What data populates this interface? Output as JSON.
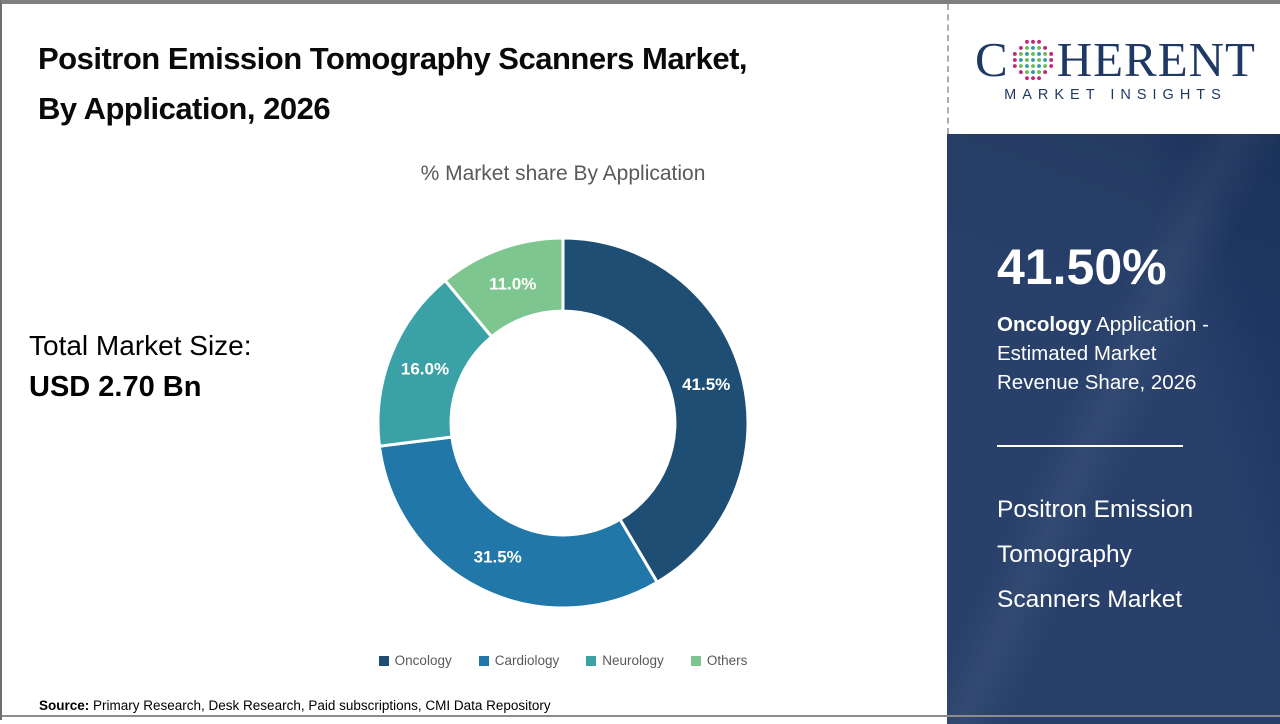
{
  "header": {
    "title_line1": "Positron Emission Tomography Scanners Market,",
    "title_line2": "By Application, 2026"
  },
  "chart_data": {
    "type": "pie",
    "subtype": "donut",
    "title": "% Market share By Application",
    "categories": [
      "Oncology",
      "Cardiology",
      "Neurology",
      "Others"
    ],
    "values": [
      41.5,
      31.5,
      16.0,
      11.0
    ],
    "labels": [
      "41.5%",
      "31.5%",
      "16.0%",
      "11.0%"
    ],
    "colors": [
      "#1F4E74",
      "#2077A8",
      "#3AA2A6",
      "#7EC68F"
    ],
    "start_angle_deg": 0,
    "direction": "clockwise",
    "inner_radius_ratio": 0.605,
    "legend_position": "bottom"
  },
  "left_panel": {
    "total_label": "Total Market Size:",
    "total_value": "USD 2.70 Bn"
  },
  "source": {
    "prefix": "Source:",
    "text": " Primary Research, Desk Research, Paid subscriptions, CMI Data Repository"
  },
  "logo": {
    "brand_c": "C",
    "brand_rest": "HERENT",
    "tagline": "MARKET INSIGHTS",
    "navy": "#1F3864",
    "globe_teal": "#2E9CA8",
    "globe_green": "#6CBE45",
    "globe_magenta": "#C0267E"
  },
  "sidebar": {
    "highlight_value": "41.50%",
    "highlight_bold": "Oncology",
    "highlight_rest": " Application - Estimated Market Revenue Share, 2026",
    "market_name": "Positron Emission Tomography Scanners Market",
    "panel_color": "#1F3864"
  }
}
